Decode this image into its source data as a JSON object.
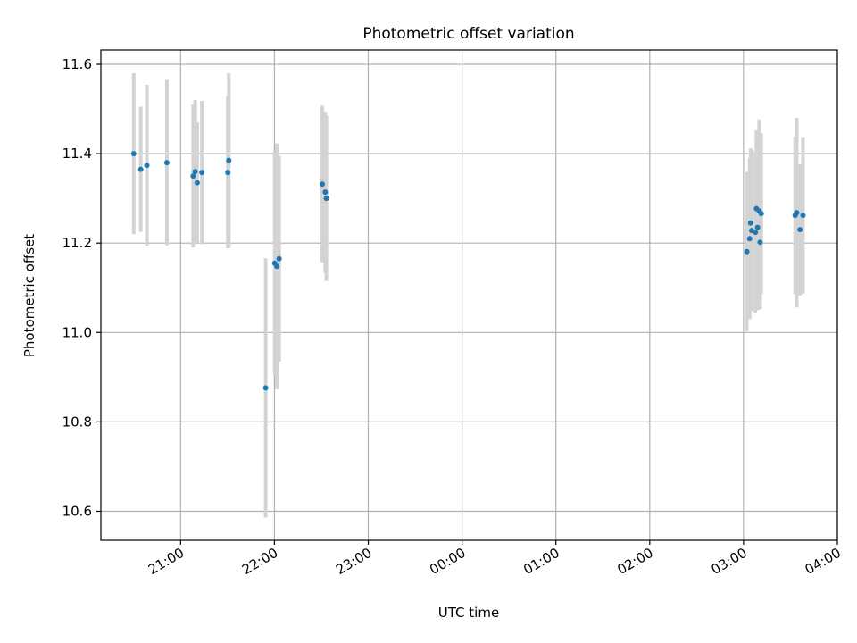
{
  "chart_data": {
    "type": "scatter",
    "title": "Photometric offset variation",
    "xlabel": "UTC time",
    "ylabel": "Photometric offset",
    "x_unit": "minutes past 20:00 UTC (axis spans into next day)",
    "xlim": [
      9,
      480
    ],
    "ylim": [
      10.535,
      11.632
    ],
    "grid": true,
    "colors": {
      "points": "#1f77b4",
      "errorbars": "#d3d3d3",
      "grid": "#b0b0b0"
    },
    "y_ticks": [
      {
        "value": 10.6,
        "label": "10.6"
      },
      {
        "value": 10.8,
        "label": "10.8"
      },
      {
        "value": 11.0,
        "label": "11.0"
      },
      {
        "value": 11.2,
        "label": "11.2"
      },
      {
        "value": 11.4,
        "label": "11.4"
      },
      {
        "value": 11.6,
        "label": "11.6"
      }
    ],
    "x_ticks": [
      {
        "value": 60,
        "label": "21:00"
      },
      {
        "value": 120,
        "label": "22:00"
      },
      {
        "value": 180,
        "label": "23:00"
      },
      {
        "value": 240,
        "label": "00:00"
      },
      {
        "value": 300,
        "label": "01:00"
      },
      {
        "value": 360,
        "label": "02:00"
      },
      {
        "value": 420,
        "label": "03:00"
      },
      {
        "value": 480,
        "label": "04:00"
      }
    ],
    "points": [
      {
        "x": 30.0,
        "y": 11.4,
        "err": 0.18
      },
      {
        "x": 34.5,
        "y": 11.365,
        "err": 0.14
      },
      {
        "x": 38.4,
        "y": 11.374,
        "err": 0.18
      },
      {
        "x": 51.2,
        "y": 11.38,
        "err": 0.185
      },
      {
        "x": 68.0,
        "y": 11.35,
        "err": 0.16
      },
      {
        "x": 69.3,
        "y": 11.36,
        "err": 0.16
      },
      {
        "x": 70.6,
        "y": 11.335,
        "err": 0.135
      },
      {
        "x": 73.6,
        "y": 11.358,
        "err": 0.16
      },
      {
        "x": 90.2,
        "y": 11.358,
        "err": 0.17
      },
      {
        "x": 90.8,
        "y": 11.385,
        "err": 0.195
      },
      {
        "x": 114.4,
        "y": 10.876,
        "err": 0.29
      },
      {
        "x": 120.2,
        "y": 11.155,
        "err": 0.25
      },
      {
        "x": 121.5,
        "y": 11.148,
        "err": 0.275
      },
      {
        "x": 123.0,
        "y": 11.165,
        "err": 0.23
      },
      {
        "x": 150.6,
        "y": 11.332,
        "err": 0.175
      },
      {
        "x": 152.5,
        "y": 11.314,
        "err": 0.18
      },
      {
        "x": 153.2,
        "y": 11.3,
        "err": 0.185
      },
      {
        "x": 422.1,
        "y": 11.181,
        "err": 0.178
      },
      {
        "x": 423.9,
        "y": 11.21,
        "err": 0.18
      },
      {
        "x": 424.5,
        "y": 11.245,
        "err": 0.167
      },
      {
        "x": 425.2,
        "y": 11.228,
        "err": 0.18
      },
      {
        "x": 427.6,
        "y": 11.224,
        "err": 0.18
      },
      {
        "x": 428.2,
        "y": 11.277,
        "err": 0.175
      },
      {
        "x": 429.0,
        "y": 11.235,
        "err": 0.185
      },
      {
        "x": 430.0,
        "y": 11.272,
        "err": 0.205
      },
      {
        "x": 430.6,
        "y": 11.202,
        "err": 0.15
      },
      {
        "x": 431.3,
        "y": 11.266,
        "err": 0.18
      },
      {
        "x": 453.0,
        "y": 11.262,
        "err": 0.176
      },
      {
        "x": 454.0,
        "y": 11.268,
        "err": 0.212
      },
      {
        "x": 456.1,
        "y": 11.23,
        "err": 0.147
      },
      {
        "x": 458.0,
        "y": 11.262,
        "err": 0.175
      }
    ]
  }
}
